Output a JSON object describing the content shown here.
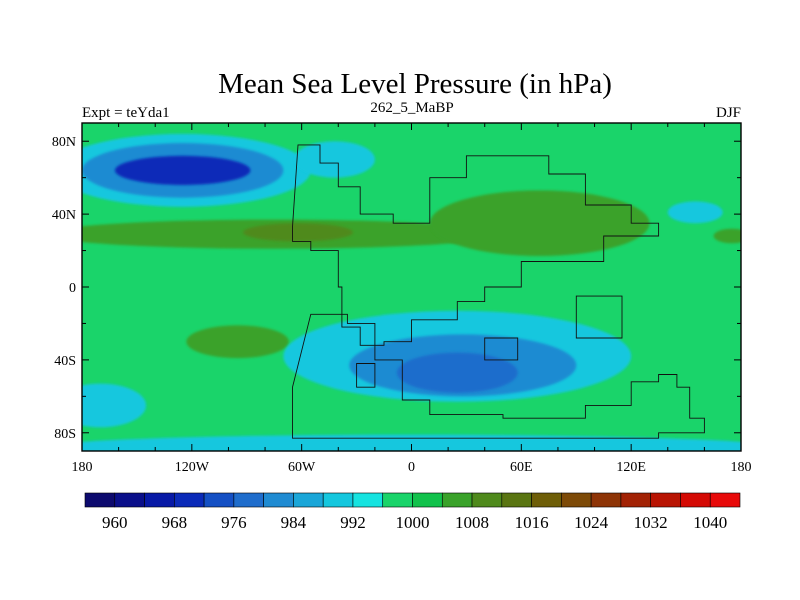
{
  "chart_data": {
    "type": "heatmap",
    "title": "Mean Sea Level Pressure (in hPa)",
    "subtitle_left": "Expt = teYda1",
    "subtitle_center": "262_5_MaBP",
    "subtitle_right": "DJF",
    "units": "hPa",
    "xlim": [
      -180,
      180
    ],
    "ylim": [
      -90,
      90
    ],
    "x_ticks": [
      {
        "value": -180,
        "label": "180"
      },
      {
        "value": -120,
        "label": "120W"
      },
      {
        "value": -60,
        "label": "60W"
      },
      {
        "value": 0,
        "label": "0"
      },
      {
        "value": 60,
        "label": "60E"
      },
      {
        "value": 120,
        "label": "120E"
      },
      {
        "value": 180,
        "label": "180"
      }
    ],
    "y_ticks": [
      {
        "value": 80,
        "label": "80N"
      },
      {
        "value": 40,
        "label": "40N"
      },
      {
        "value": 0,
        "label": "0"
      },
      {
        "value": -40,
        "label": "40S"
      },
      {
        "value": -80,
        "label": "80S"
      }
    ],
    "colorbar": {
      "levels": [
        960,
        964,
        968,
        972,
        976,
        980,
        984,
        988,
        992,
        996,
        1000,
        1004,
        1008,
        1012,
        1016,
        1020,
        1024,
        1028,
        1032,
        1036,
        1040
      ],
      "labeled_levels": [
        "960",
        "968",
        "976",
        "984",
        "992",
        "1000",
        "1008",
        "1016",
        "1024",
        "1032",
        "1040"
      ],
      "colors": [
        "#0d0a6e",
        "#0a0f8a",
        "#0719a6",
        "#0a2ab8",
        "#1450c4",
        "#1f6dcc",
        "#1f8bd2",
        "#1aa6d8",
        "#14c7de",
        "#16e3e0",
        "#1ad46a",
        "#12c24c",
        "#3aa22a",
        "#4f8a1c",
        "#5a7512",
        "#6e5e08",
        "#7d4a08",
        "#8e3406",
        "#a22204",
        "#b81403",
        "#d40a04",
        "#e80a0a"
      ]
    },
    "background_level_hPa": 998,
    "regions": [
      {
        "name": "north-pacific-low-outer",
        "hPa": 990,
        "lon": -125,
        "lat": 64,
        "rx": 70,
        "ry": 20
      },
      {
        "name": "north-pacific-low-mid",
        "hPa": 982,
        "lon": -125,
        "lat": 64,
        "rx": 55,
        "ry": 15
      },
      {
        "name": "north-pacific-low-core",
        "hPa": 970,
        "lon": -125,
        "lat": 64,
        "rx": 37,
        "ry": 8
      },
      {
        "name": "north-pacific-low-east-lobe",
        "hPa": 990,
        "lon": -42,
        "lat": 70,
        "rx": 22,
        "ry": 10
      },
      {
        "name": "subtropical-high-north",
        "hPa": 1004,
        "lon": -75,
        "lat": 29,
        "rx": 125,
        "ry": 8
      },
      {
        "name": "subtropical-high-north-core",
        "hPa": 1010,
        "lon": -62,
        "lat": 30,
        "rx": 30,
        "ry": 5
      },
      {
        "name": "asian-high",
        "hPa": 1004,
        "lon": 70,
        "lat": 35,
        "rx": 60,
        "ry": 18
      },
      {
        "name": "east-pacific-high",
        "hPa": 1004,
        "lon": 175,
        "lat": 28,
        "rx": 10,
        "ry": 4
      },
      {
        "name": "south-pacific-high",
        "hPa": 1004,
        "lon": -95,
        "lat": -30,
        "rx": 28,
        "ry": 9
      },
      {
        "name": "tethys-low-outer",
        "hPa": 990,
        "lon": 25,
        "lat": -38,
        "rx": 95,
        "ry": 25
      },
      {
        "name": "tethys-low-mid",
        "hPa": 982,
        "lon": 28,
        "lat": -43,
        "rx": 62,
        "ry": 17
      },
      {
        "name": "tethys-low-core",
        "hPa": 976,
        "lon": 25,
        "lat": -47,
        "rx": 33,
        "ry": 11
      },
      {
        "name": "southern-ocean-belt",
        "hPa": 990,
        "lon": 0,
        "lat": -88,
        "rx": 200,
        "ry": 7
      },
      {
        "name": "south-pacific-low",
        "hPa": 990,
        "lon": -170,
        "lat": -65,
        "rx": 25,
        "ry": 12
      },
      {
        "name": "pacific-east-low",
        "hPa": 990,
        "lon": 155,
        "lat": 41,
        "rx": 15,
        "ry": 6
      }
    ]
  },
  "map_outline": [
    [
      [
        -62,
        78
      ],
      [
        -50,
        68
      ],
      [
        -40,
        55
      ],
      [
        -28,
        40
      ],
      [
        -10,
        35
      ],
      [
        10,
        60
      ],
      [
        30,
        72
      ],
      [
        55,
        72
      ],
      [
        75,
        62
      ],
      [
        95,
        45
      ],
      [
        120,
        35
      ],
      [
        135,
        28
      ],
      [
        105,
        14
      ],
      [
        60,
        0
      ],
      [
        40,
        -8
      ],
      [
        25,
        -18
      ],
      [
        0,
        -30
      ],
      [
        -15,
        -32
      ],
      [
        -28,
        -22
      ],
      [
        -38,
        0
      ],
      [
        -40,
        20
      ],
      [
        -55,
        25
      ],
      [
        -65,
        33
      ]
    ],
    [
      [
        -55,
        -15
      ],
      [
        -35,
        -20
      ],
      [
        -20,
        -40
      ],
      [
        -5,
        -62
      ],
      [
        10,
        -70
      ],
      [
        50,
        -72
      ],
      [
        95,
        -65
      ],
      [
        120,
        -52
      ],
      [
        135,
        -48
      ],
      [
        145,
        -55
      ],
      [
        152,
        -72
      ],
      [
        160,
        -80
      ],
      [
        135,
        -83
      ],
      [
        60,
        -83
      ],
      [
        0,
        -83
      ],
      [
        -60,
        -83
      ],
      [
        -65,
        -75
      ],
      [
        -65,
        -55
      ]
    ]
  ],
  "map_outline_inner": [
    [
      [
        90,
        -5
      ],
      [
        112,
        -5
      ],
      [
        115,
        -28
      ],
      [
        90,
        -28
      ]
    ],
    [
      [
        -30,
        -42
      ],
      [
        -20,
        -42
      ],
      [
        -20,
        -55
      ],
      [
        -30,
        -55
      ]
    ],
    [
      [
        40,
        -28
      ],
      [
        58,
        -28
      ],
      [
        58,
        -40
      ],
      [
        40,
        -40
      ]
    ]
  ]
}
